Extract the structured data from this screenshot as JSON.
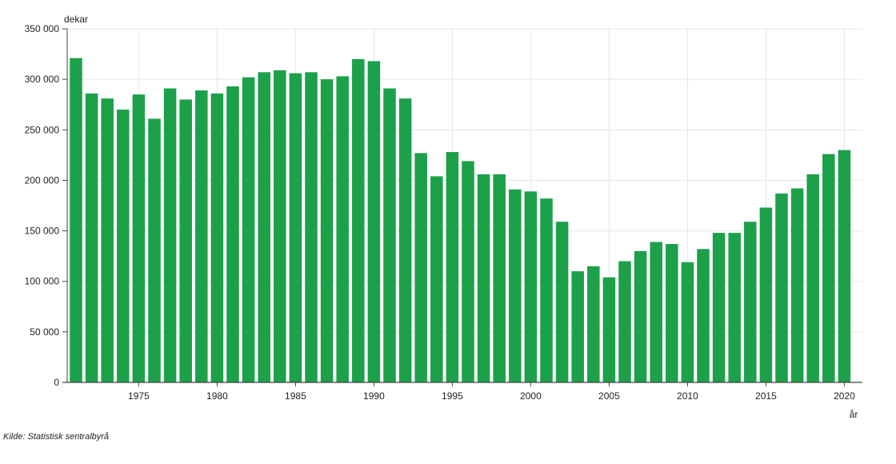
{
  "chart_data": {
    "type": "bar",
    "ylabel": "dekar",
    "xlabel": "år",
    "ylim": [
      0,
      350000
    ],
    "yticks": [
      0,
      50000,
      100000,
      150000,
      200000,
      250000,
      300000,
      350000
    ],
    "ytick_labels": [
      "0",
      "50 000",
      "100 000",
      "150 000",
      "200 000",
      "250 000",
      "300 000",
      "350 000"
    ],
    "xticks": [
      1975,
      1980,
      1985,
      1990,
      1995,
      2000,
      2005,
      2010,
      2015,
      2020
    ],
    "xtick_labels": [
      "1975",
      "1980",
      "1985",
      "1990",
      "1995",
      "2000",
      "2005",
      "2010",
      "2015",
      "2020"
    ],
    "grid": true,
    "bar_color": "#1ca04a",
    "categories": [
      1971,
      1972,
      1973,
      1974,
      1975,
      1976,
      1977,
      1978,
      1979,
      1980,
      1981,
      1982,
      1983,
      1984,
      1985,
      1986,
      1987,
      1988,
      1989,
      1990,
      1991,
      1992,
      1993,
      1994,
      1995,
      1996,
      1997,
      1998,
      1999,
      2000,
      2001,
      2002,
      2003,
      2004,
      2005,
      2006,
      2007,
      2008,
      2009,
      2010,
      2011,
      2012,
      2013,
      2014,
      2015,
      2016,
      2017,
      2018,
      2019,
      2020
    ],
    "values": [
      321000,
      286000,
      281000,
      270000,
      285000,
      261000,
      291000,
      280000,
      289000,
      286000,
      293000,
      302000,
      307000,
      309000,
      306000,
      307000,
      300000,
      303000,
      320000,
      318000,
      291000,
      281000,
      227000,
      204000,
      228000,
      219000,
      206000,
      206000,
      191000,
      189000,
      182000,
      159000,
      110000,
      115000,
      104000,
      120000,
      130000,
      139000,
      137000,
      119000,
      132000,
      148000,
      148000,
      159000,
      173000,
      187000,
      192000,
      206000,
      226000,
      230000
    ]
  },
  "source": "Kilde:  Statistisk sentralbyrå"
}
